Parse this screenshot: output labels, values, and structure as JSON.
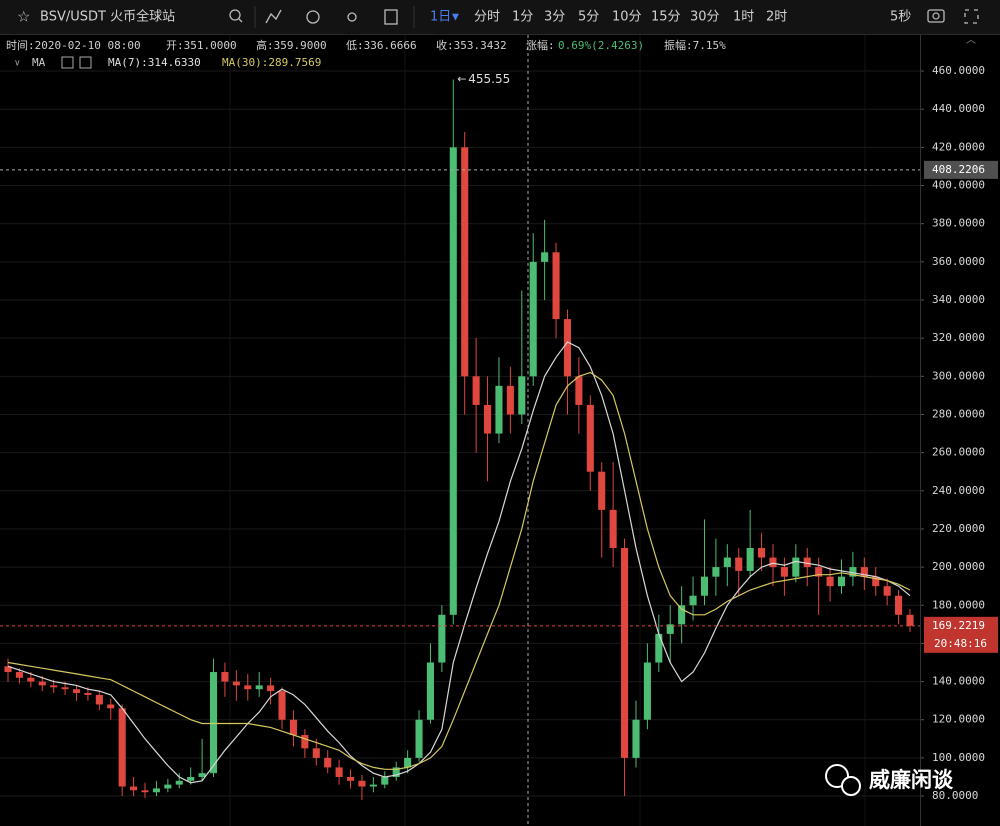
{
  "toolbar": {
    "symbol": "BSV/USDT 火币全球站",
    "active_interval": "1日",
    "intervals": [
      "分时",
      "1分",
      "3分",
      "5分",
      "10分",
      "15分",
      "30分",
      "1时",
      "2时"
    ],
    "refresh": "5秒"
  },
  "info": {
    "time": "时间:2020-02-10 08:00",
    "open": "开:351.0000",
    "high": "高:359.9000",
    "low": "低:336.6666",
    "close": "收:353.3432",
    "change_label": "涨幅:",
    "change": "0.69%(2.4263)",
    "amplitude": "振幅:7.15%"
  },
  "indicator": {
    "name": "MA",
    "ma7": "MA(7):314.6330",
    "ma30": "MA(30):289.7569"
  },
  "watermark": "威廉闲谈",
  "chart_data": {
    "type": "candlestick",
    "open": [
      148,
      145,
      142,
      140,
      138,
      137,
      136,
      134,
      133,
      128,
      126,
      85,
      83,
      82,
      84,
      86,
      88,
      90,
      92,
      145,
      140,
      138,
      136,
      138,
      135,
      120,
      112,
      105,
      100,
      95,
      90,
      88,
      85,
      86,
      90,
      95,
      100,
      120,
      150,
      175,
      420,
      300,
      285,
      270,
      295,
      280,
      300,
      360,
      365,
      330,
      300,
      285,
      250,
      230,
      210,
      100,
      120,
      150,
      165,
      170,
      180,
      185,
      195,
      200,
      205,
      198,
      210,
      205,
      200,
      195,
      205,
      200,
      195,
      190,
      195,
      200,
      195,
      190,
      185,
      175
    ],
    "high": [
      152,
      147,
      145,
      143,
      141,
      140,
      138,
      137,
      135,
      131,
      128,
      90,
      87,
      88,
      89,
      92,
      95,
      110,
      152,
      150,
      146,
      144,
      145,
      142,
      137,
      125,
      115,
      110,
      104,
      99,
      94,
      91,
      90,
      93,
      98,
      104,
      125,
      160,
      180,
      455.55,
      428,
      320,
      300,
      310,
      305,
      345,
      375,
      382,
      370,
      335,
      310,
      290,
      255,
      255,
      215,
      130,
      160,
      175,
      180,
      190,
      195,
      225,
      215,
      212,
      210,
      230,
      218,
      212,
      205,
      212,
      210,
      205,
      200,
      204,
      208,
      205,
      200,
      194,
      188,
      178
    ],
    "low": [
      140,
      139,
      137,
      135,
      134,
      133,
      130,
      130,
      125,
      120,
      80,
      80,
      79,
      80,
      82,
      84,
      86,
      88,
      90,
      132,
      130,
      130,
      132,
      128,
      115,
      106,
      100,
      96,
      92,
      86,
      84,
      78,
      82,
      84,
      88,
      92,
      98,
      118,
      145,
      170,
      280,
      260,
      245,
      265,
      270,
      275,
      295,
      340,
      320,
      280,
      270,
      240,
      205,
      200,
      80,
      95,
      115,
      145,
      150,
      160,
      172,
      180,
      185,
      190,
      185,
      195,
      198,
      190,
      185,
      192,
      190,
      175,
      182,
      186,
      190,
      188,
      185,
      180,
      170,
      166
    ],
    "close": [
      145,
      142,
      140,
      138,
      137,
      136,
      134,
      133,
      128,
      126,
      85,
      83,
      82,
      84,
      86,
      88,
      90,
      92,
      145,
      140,
      138,
      136,
      138,
      135,
      120,
      112,
      105,
      100,
      95,
      90,
      88,
      85,
      86,
      90,
      95,
      100,
      120,
      150,
      175,
      420,
      300,
      285,
      270,
      295,
      280,
      300,
      360,
      365,
      330,
      300,
      285,
      250,
      230,
      210,
      100,
      120,
      150,
      165,
      170,
      180,
      185,
      195,
      200,
      205,
      198,
      210,
      205,
      200,
      195,
      205,
      200,
      195,
      190,
      195,
      200,
      195,
      190,
      185,
      175,
      169.2219
    ],
    "colors": {
      "up": "#4dbd74",
      "down": "#e0473e"
    },
    "lines": [
      {
        "color": "#d8d8d8",
        "values": [
          148,
          146,
          144,
          142,
          140,
          139,
          138,
          136,
          135,
          133,
          126,
          118,
          110,
          103,
          96,
          90,
          87,
          88,
          96,
          104,
          111,
          118,
          124,
          132,
          136,
          133,
          128,
          121,
          114,
          108,
          101,
          96,
          92,
          90,
          91,
          93,
          97,
          103,
          115,
          150,
          170,
          189,
          207,
          224,
          245,
          262,
          282,
          300,
          310,
          318,
          315,
          305,
          290,
          270,
          240,
          210,
          185,
          165,
          150,
          140,
          145,
          155,
          168,
          180,
          188,
          195,
          200,
          202,
          201,
          203,
          202,
          201,
          199,
          198,
          197,
          196,
          195,
          193,
          190,
          185
        ]
      },
      {
        "color": "#d4c860",
        "values": [
          150,
          149,
          148,
          147,
          146,
          145,
          144,
          143,
          142,
          141,
          138,
          135,
          132,
          129,
          126,
          123,
          120,
          118,
          118,
          118,
          118,
          118,
          117,
          116,
          114,
          112,
          110,
          108,
          106,
          104,
          100,
          97,
          95,
          94,
          94,
          95,
          97,
          100,
          106,
          120,
          135,
          150,
          165,
          180,
          200,
          220,
          245,
          265,
          285,
          295,
          300,
          302,
          298,
          290,
          270,
          245,
          220,
          200,
          185,
          178,
          175,
          175,
          178,
          182,
          185,
          188,
          190,
          192,
          193,
          194,
          195,
          196,
          196,
          197,
          196,
          195,
          194,
          193,
          191,
          188
        ]
      }
    ],
    "ylim": [
      64.3,
      478.9
    ],
    "yticks": [
      {
        "value": 80,
        "label": "80.0000"
      },
      {
        "value": 100,
        "label": "100.0000"
      },
      {
        "value": 120,
        "label": "120.0000"
      },
      {
        "value": 140,
        "label": "140.0000"
      },
      {
        "value": 160,
        "label": "160.0000"
      },
      {
        "value": 180,
        "label": "180.0000"
      },
      {
        "value": 200,
        "label": "200.0000"
      },
      {
        "value": 220,
        "label": "220.0000"
      },
      {
        "value": 240,
        "label": "240.0000"
      },
      {
        "value": 260,
        "label": "260.0000"
      },
      {
        "value": 280,
        "label": "280.0000"
      },
      {
        "value": 300,
        "label": "300.0000"
      },
      {
        "value": 320,
        "label": "320.0000"
      },
      {
        "value": 340,
        "label": "340.0000"
      },
      {
        "value": 360,
        "label": "360.0000"
      },
      {
        "value": 380,
        "label": "380.0000"
      },
      {
        "value": 400,
        "label": "400.0000"
      },
      {
        "value": 420,
        "label": "420.0000"
      },
      {
        "value": 440,
        "label": "440.0000"
      },
      {
        "value": 460,
        "label": "460.0000"
      }
    ],
    "grid": true,
    "high_annotation": 455.55,
    "crosshair_price": 408.2206,
    "last_price": 169.2219,
    "countdown": "20:48:16"
  }
}
